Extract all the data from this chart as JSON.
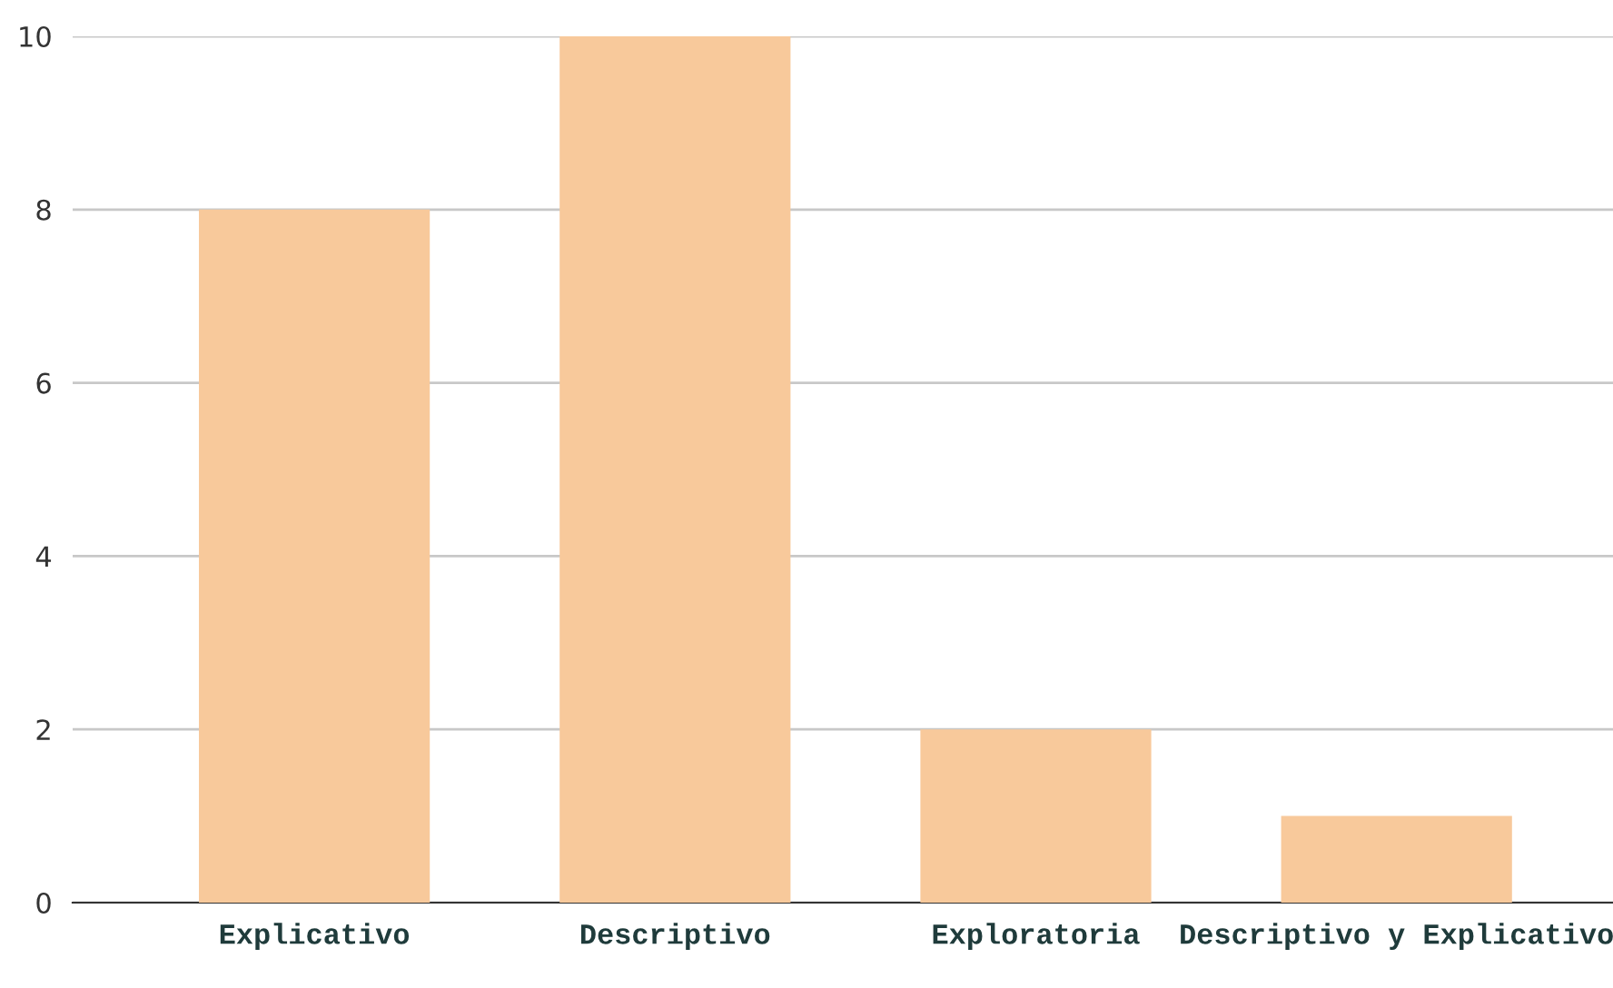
{
  "chart_data": {
    "type": "bar",
    "categories": [
      "Explicativo",
      "Descriptivo",
      "Exploratoria",
      "Descriptivo y Explicativo"
    ],
    "values": [
      8,
      10,
      2,
      1
    ],
    "color": "#f8c99b",
    "ylim": [
      0,
      10
    ],
    "yticks": [
      0,
      2,
      4,
      6,
      8,
      10
    ],
    "grid": "y"
  }
}
